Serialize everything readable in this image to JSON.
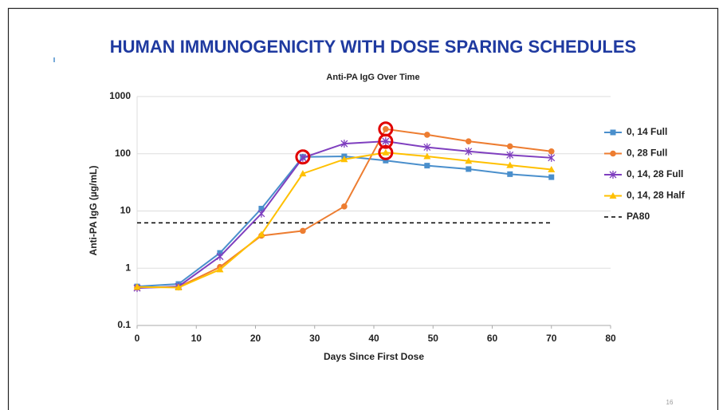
{
  "title": "HUMAN IMMUNOGENICITY WITH DOSE SPARING SCHEDULES",
  "page_number": "16",
  "chart_data": {
    "type": "line",
    "title": "Anti-PA IgG Over Time",
    "x_label": "Days Since First Dose",
    "y_label": "Anti-PA IgG (µg/mL)",
    "x": [
      0,
      7,
      14,
      21,
      28,
      35,
      42,
      49,
      56,
      63,
      70
    ],
    "xlim": [
      0,
      80
    ],
    "xticks": [
      0,
      10,
      20,
      30,
      40,
      50,
      60,
      70,
      80
    ],
    "ylim": [
      0.1,
      1000
    ],
    "yticks": [
      0.1,
      1,
      10,
      100,
      1000
    ],
    "log_y": true,
    "grid": true,
    "legend": "right",
    "series": [
      {
        "name": "0, 14 Full",
        "color": "#4a8fcc",
        "marker": "square",
        "values": [
          0.48,
          0.53,
          1.85,
          11,
          88,
          90,
          76,
          62,
          54,
          44,
          39
        ]
      },
      {
        "name": "0, 28 Full",
        "color": "#ed7d31",
        "marker": "circle",
        "values": [
          0.46,
          0.47,
          1.05,
          3.7,
          4.5,
          12,
          270,
          215,
          165,
          135,
          110
        ]
      },
      {
        "name": "0, 14, 28 Full",
        "color": "#7f3fbf",
        "marker": "star",
        "values": [
          0.45,
          0.48,
          1.6,
          9,
          85,
          150,
          165,
          130,
          110,
          95,
          85
        ]
      },
      {
        "name": "0, 14, 28 Half",
        "color": "#ffc000",
        "marker": "triangle",
        "values": [
          0.47,
          0.46,
          0.95,
          3.9,
          45,
          80,
          105,
          90,
          75,
          63,
          53
        ]
      }
    ],
    "reference_lines": [
      {
        "name": "PA80",
        "value": 6.2,
        "color": "#000000",
        "style": "dashed"
      }
    ]
  }
}
